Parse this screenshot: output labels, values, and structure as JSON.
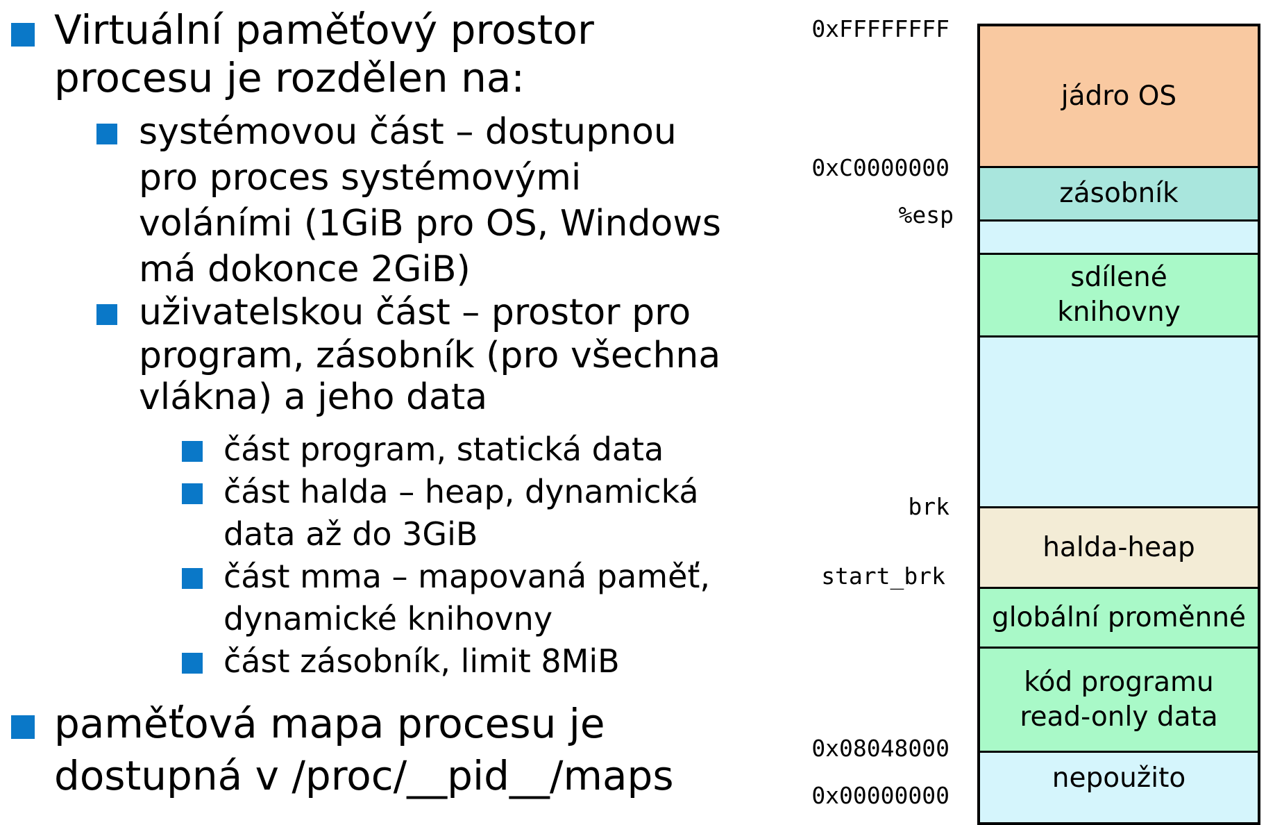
{
  "text": {
    "b1_l1": "Virtuální paměťový prostor",
    "b1_l2": "procesu je rozdělen na:",
    "b1a_l1": "systémovou část – dostupnou",
    "b1a_l2": "pro proces systémovými",
    "b1a_l3": "voláními (1GiB pro OS, Windows",
    "b1a_l4": "má dokonce 2GiB)",
    "b1b_l1": "uživatelskou část – prostor pro",
    "b1b_l2": "program, zásobník (pro všechna",
    "b1b_l3": "vlákna) a jeho data",
    "c1_l1": "část program, statická data",
    "c2_l1": "část halda – heap, dynamická",
    "c2_l2": "data až do 3GiB",
    "c3_l1": "část mma – mapovaná paměť,",
    "c3_l2": "dynamické knihovny",
    "c4_l1": "část zásobník, limit 8MiB",
    "b2_l1": "paměťová mapa procesu je",
    "b2_l2": "dostupná v /proc/__pid__/maps"
  },
  "address_labels": {
    "top": "0xFFFFFFFF",
    "kernel": "0xC0000000",
    "esp": "%esp",
    "brk": "brk",
    "start_brk": "start_brk",
    "text_start": "0x08048000",
    "zero": "0x00000000"
  },
  "segments": {
    "kernel": "jádro OS",
    "stack": "zásobník",
    "shared_libs": "sdílené\nknihovny",
    "heap": "halda-heap",
    "globals": "globální proměnné",
    "code": "kód programu\nread-only data",
    "unused": "nepoužito"
  },
  "colors": {
    "bullet": "#0a78c8",
    "kernel": "#f9c9a1",
    "stack": "#a9e6dd",
    "free": "#d5f5fc",
    "shared_libs": "#a9f9c8",
    "heap": "#f3ecd6",
    "globals": "#a9f9c8",
    "code": "#a9f9c8",
    "unused": "#d5f5fc"
  }
}
